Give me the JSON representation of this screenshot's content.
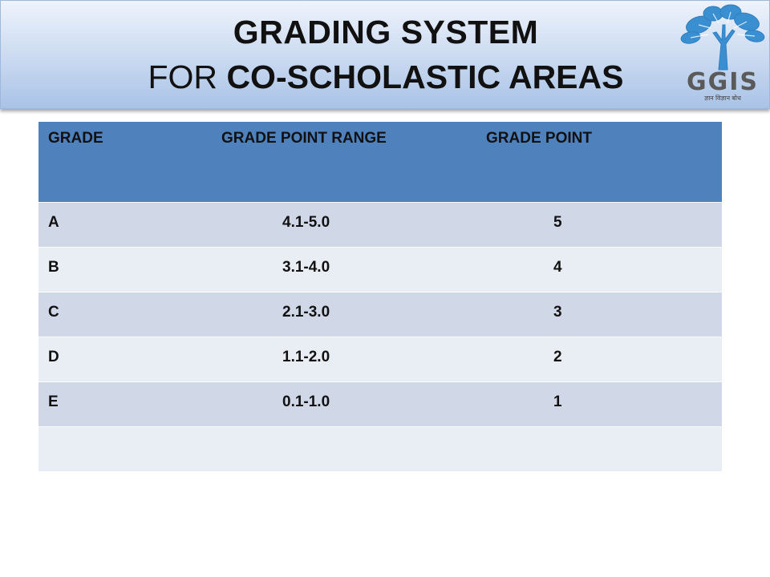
{
  "title": {
    "line1": "GRADING  SYSTEM",
    "line2_prefix": "FOR ",
    "line2_bold": "CO-SCHOLASTIC AREAS"
  },
  "logo": {
    "text": "GGIS",
    "tagline": "ज्ञान विज्ञान बोध",
    "icon": "tree-logo-icon",
    "color": "#3a8fd0"
  },
  "table": {
    "headers": [
      "GRADE",
      "GRADE  POINT  RANGE",
      "GRADE  POINT"
    ],
    "rows": [
      {
        "grade": "A",
        "range": "4.1-5.0",
        "point": "5"
      },
      {
        "grade": "B",
        "range": "3.1-4.0",
        "point": "4"
      },
      {
        "grade": "C",
        "range": "2.1-3.0",
        "point": "3"
      },
      {
        "grade": "D",
        "range": "1.1-2.0",
        "point": "2"
      },
      {
        "grade": "E",
        "range": "0.1-1.0",
        "point": "1"
      },
      {
        "grade": "",
        "range": "",
        "point": ""
      }
    ],
    "colors": {
      "header": "#4f81bd",
      "row_odd": "#d0d8e8",
      "row_even": "#e9edf4"
    }
  }
}
